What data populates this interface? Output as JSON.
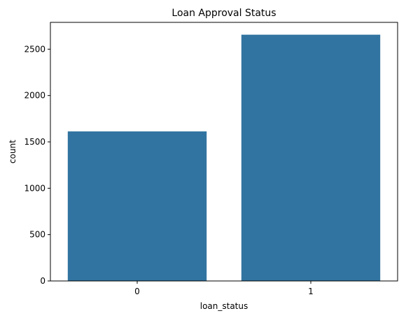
{
  "chart_data": {
    "type": "bar",
    "title": "Loan Approval Status",
    "xlabel": "loan_status",
    "ylabel": "count",
    "categories": [
      "0",
      "1"
    ],
    "values": [
      1613,
      2656
    ],
    "ylim": [
      0,
      2789
    ],
    "yticks": [
      0,
      500,
      1000,
      1500,
      2000,
      2500
    ],
    "bar_color": "#3274a1",
    "grid": false,
    "legend": "none"
  }
}
